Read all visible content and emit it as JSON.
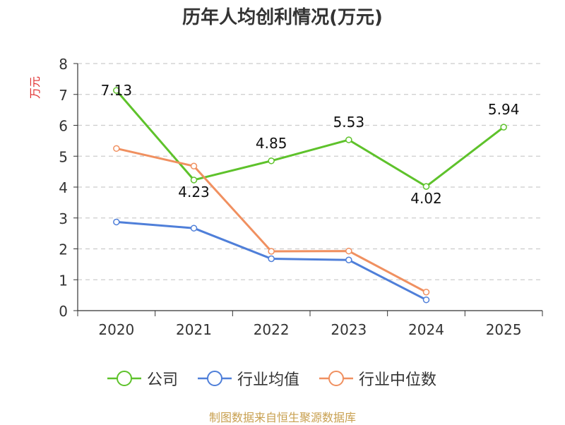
{
  "chart_data": {
    "type": "line",
    "title": "历年人均创利情况(万元)",
    "ylabel": "万元",
    "xlabel": "",
    "ylim": [
      0,
      8
    ],
    "yticks": [
      0,
      1,
      2,
      3,
      4,
      5,
      6,
      7,
      8
    ],
    "grid": true,
    "categories": [
      "2020",
      "2021",
      "2022",
      "2023",
      "2024",
      "2025"
    ],
    "series": [
      {
        "name": "公司",
        "color": "#5ec22b",
        "values": [
          7.13,
          4.23,
          4.85,
          5.53,
          4.02,
          5.94
        ],
        "labels": [
          "7.13",
          "4.23",
          "4.85",
          "5.53",
          "4.02",
          "5.94"
        ]
      },
      {
        "name": "行业均值",
        "color": "#4f7fd9",
        "values": [
          2.87,
          2.67,
          1.68,
          1.64,
          0.35,
          null
        ]
      },
      {
        "name": "行业中位数",
        "color": "#f09060",
        "values": [
          5.25,
          4.68,
          1.92,
          1.93,
          0.6,
          null
        ]
      }
    ],
    "legend_position": "bottom"
  },
  "footer": {
    "source": "制图数据来自恒生聚源数据库"
  }
}
